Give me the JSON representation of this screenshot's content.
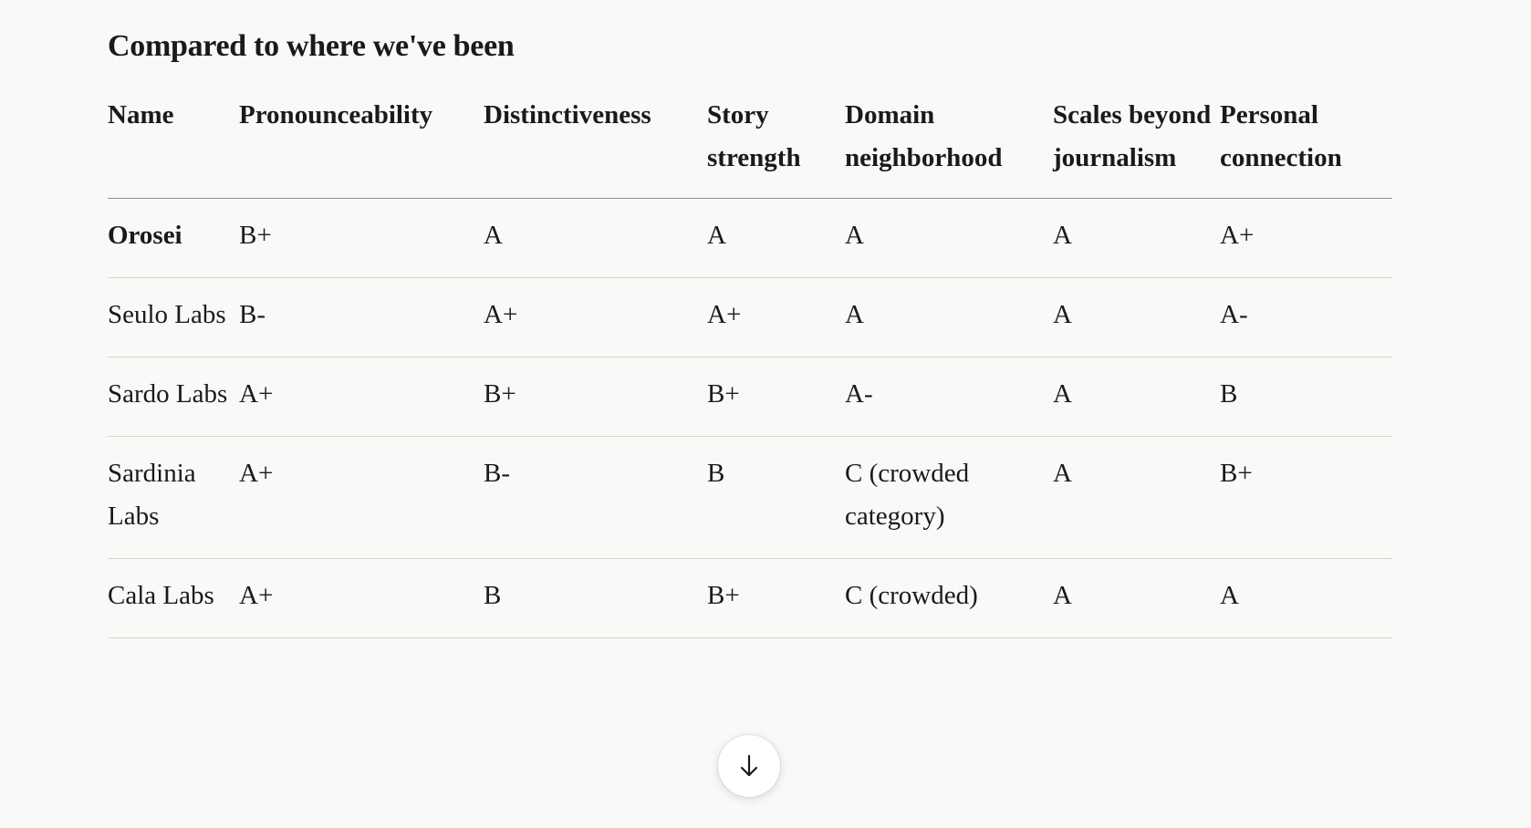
{
  "heading": "Compared to where we've been",
  "columns": {
    "name": "Name",
    "pronounceability": "Pronounceability",
    "distinctiveness": "Distinctiveness",
    "story": "Story strength",
    "domain": "Domain neighborhood",
    "scales": "Scales beyond journalism",
    "personal": "Personal connection"
  },
  "rows": [
    {
      "name": "Orosei",
      "pronounceability": "B+",
      "distinctiveness": "A",
      "story": "A",
      "domain": "A",
      "scales": "A",
      "personal": "A+"
    },
    {
      "name": "Seulo Labs",
      "pronounceability": "B-",
      "distinctiveness": "A+",
      "story": "A+",
      "domain": "A",
      "scales": "A",
      "personal": "A-"
    },
    {
      "name": "Sardo Labs",
      "pronounceability": "A+",
      "distinctiveness": "B+",
      "story": "B+",
      "domain": "A-",
      "scales": "A",
      "personal": "B"
    },
    {
      "name": "Sardinia Labs",
      "pronounceability": "A+",
      "distinctiveness": "B-",
      "story": "B",
      "domain": "C (crowded category)",
      "scales": "A",
      "personal": "B+"
    },
    {
      "name": "Cala Labs",
      "pronounceability": "A+",
      "distinctiveness": "B",
      "story": "B+",
      "domain": "C (crowded)",
      "scales": "A",
      "personal": "A"
    }
  ],
  "scroll_button": {
    "icon": "arrow-down-icon"
  }
}
